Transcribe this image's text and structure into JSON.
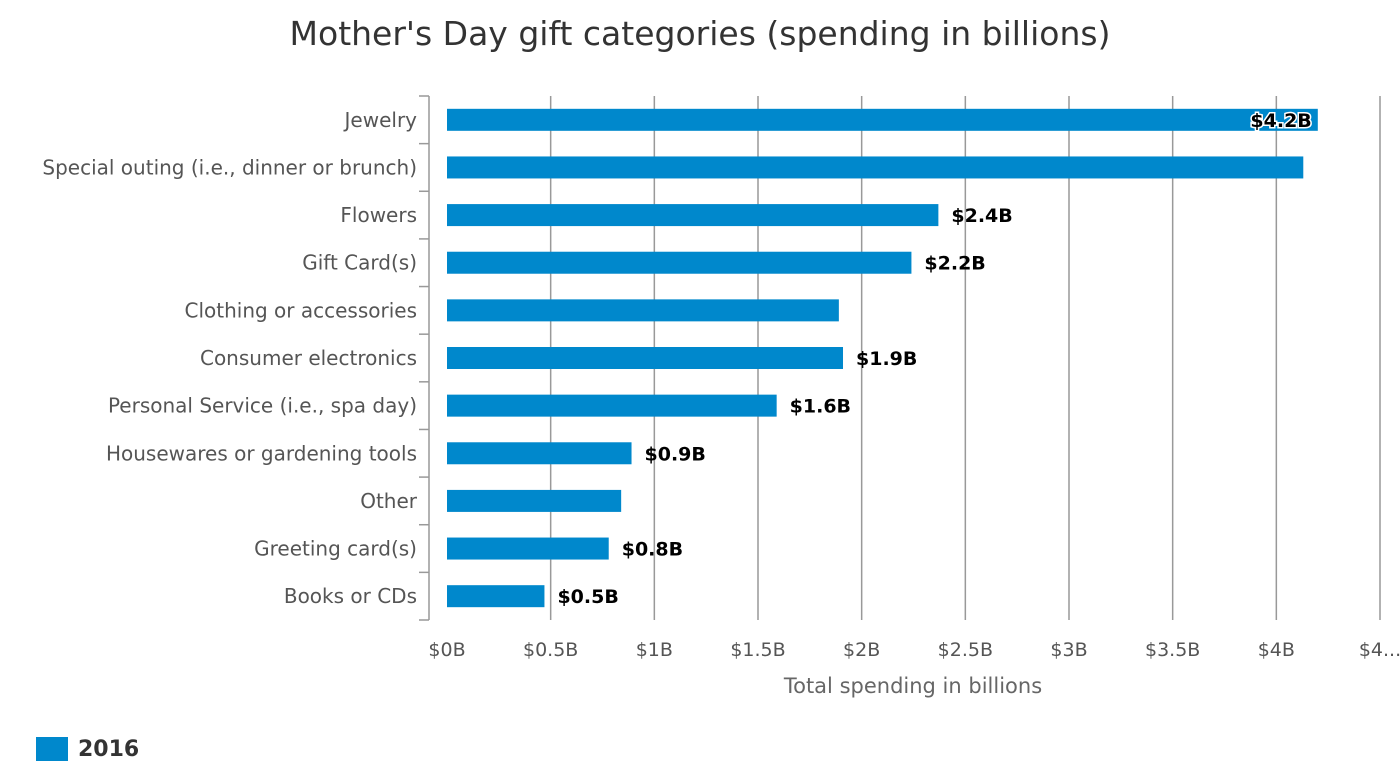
{
  "chart_data": {
    "type": "bar",
    "orientation": "horizontal",
    "title": "Mother's Day gift categories (spending in billions)",
    "xlabel": "Total spending in billions",
    "ylabel": "",
    "xlim": [
      0,
      4.5
    ],
    "grid": true,
    "legend_position": "bottom-left",
    "bar_color": "#0088cc",
    "categories": [
      "Jewelry",
      "Special outing (i.e., dinner or brunch)",
      "Flowers",
      "Gift Card(s)",
      "Clothing or accessories",
      "Consumer electronics",
      "Personal Service (i.e., spa day)",
      "Housewares or gardening tools",
      "Other",
      "Greeting card(s)",
      "Books or CDs"
    ],
    "series": [
      {
        "name": "2016",
        "values": [
          4.2,
          4.13,
          2.37,
          2.24,
          1.89,
          1.91,
          1.59,
          0.89,
          0.84,
          0.78,
          0.47
        ],
        "data_labels": [
          "$4.2B",
          "",
          "$2.4B",
          "$2.2B",
          "",
          "$1.9B",
          "$1.6B",
          "$0.9B",
          "",
          "$0.8B",
          "$0.5B"
        ]
      }
    ],
    "x_ticks": [
      0,
      0.5,
      1,
      1.5,
      2,
      2.5,
      3,
      3.5,
      4,
      4.5
    ],
    "x_tick_labels": [
      "$0B",
      "$0.5B",
      "$1B",
      "$1.5B",
      "$2B",
      "$2.5B",
      "$3B",
      "$3.5B",
      "$4B",
      "$4..."
    ]
  }
}
